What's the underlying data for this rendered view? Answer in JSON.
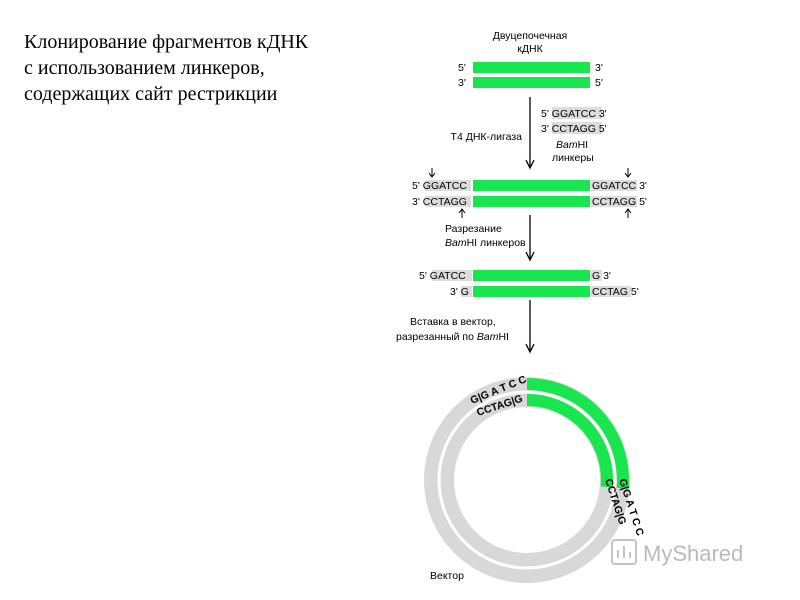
{
  "title": [
    "Клонирование фрагментов кДНК",
    "с использованием линкеров,",
    "содержащих сайт рестрикции"
  ],
  "cdna": {
    "label": [
      "Двуцепочечная",
      "кДНК"
    ],
    "top": [
      "5'",
      "3'"
    ],
    "bottom": [
      "3'",
      "5'"
    ]
  },
  "ligase": "T4 ДНК-лигаза",
  "linkers": {
    "top": [
      "5'",
      "GGATCC",
      "3'"
    ],
    "bottom": [
      "3'",
      "CCTAGG",
      "5'"
    ],
    "name": [
      "Bam",
      "HI"
    ],
    "caption": "линкеры"
  },
  "ligated": {
    "top_left": [
      "5'",
      "GGATCC"
    ],
    "top_right": [
      "GGATCC",
      "3'"
    ],
    "bottom_left": [
      "3'",
      "CCTAGG"
    ],
    "bottom_right": [
      "CCTAGG",
      "5'"
    ]
  },
  "cut": {
    "line1": "Разрезание",
    "line2": [
      "Bam",
      "HI линкеров"
    ]
  },
  "cut_product": {
    "top_left": [
      "5'",
      "GATCC"
    ],
    "top_right": [
      "G",
      "3'"
    ],
    "bottom_left": [
      "3'",
      "G"
    ],
    "bottom_right": [
      "CCTAG",
      "5'"
    ]
  },
  "insert": {
    "line1": "Вставка в вектор,",
    "line2": [
      "разрезанный по ",
      "Bam",
      "HI"
    ]
  },
  "vector": {
    "top_outer": "G|G A T C C",
    "top_inner": "CCTAG|G",
    "right_outer": "G|G A T C C",
    "right_inner": "CCTAG|G",
    "label": "Вектор"
  },
  "watermark": "MyShared"
}
